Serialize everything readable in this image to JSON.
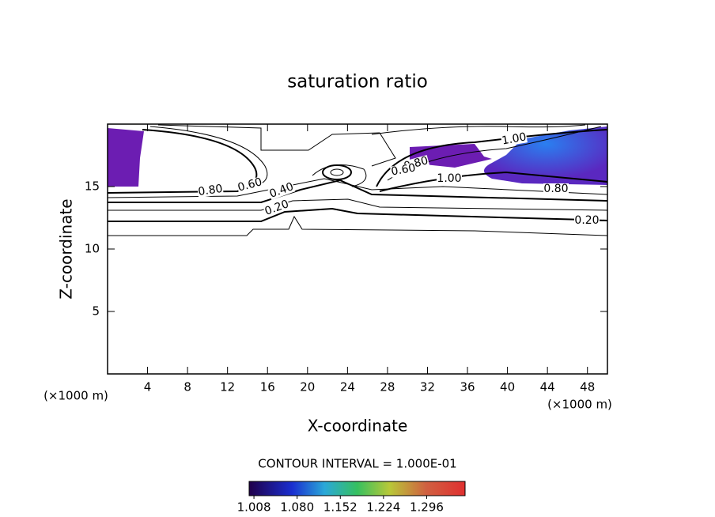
{
  "chart_data": {
    "type": "contour",
    "title": "saturation ratio",
    "xlabel": "X-coordinate",
    "ylabel": "Z-coordinate",
    "xunit": "(×1000 m)",
    "yunit": "(×1000 m)",
    "xlim": [
      0,
      50
    ],
    "xticks": [
      4,
      8,
      12,
      16,
      20,
      24,
      28,
      32,
      36,
      40,
      44,
      48
    ],
    "ylim": [
      0,
      20
    ],
    "yticks": [
      5,
      10,
      15
    ],
    "contour_levels": [
      {
        "value": 0.2,
        "label": "0.20"
      },
      {
        "value": 0.4,
        "label": "0.40"
      },
      {
        "value": 0.6,
        "label": "0.60"
      },
      {
        "value": 0.8,
        "label": "0.80"
      },
      {
        "value": 1,
        "label": "1.00"
      }
    ],
    "contour_interval_text": "CONTOUR INTERVAL = 1.000E-01",
    "colorbar_lim": [
      1.0,
      1.36
    ],
    "colorbar_ticks": [
      1.008,
      {
        "value": 1.08,
        "label": "1.080"
      },
      1.152,
      1.224,
      1.296
    ]
  }
}
